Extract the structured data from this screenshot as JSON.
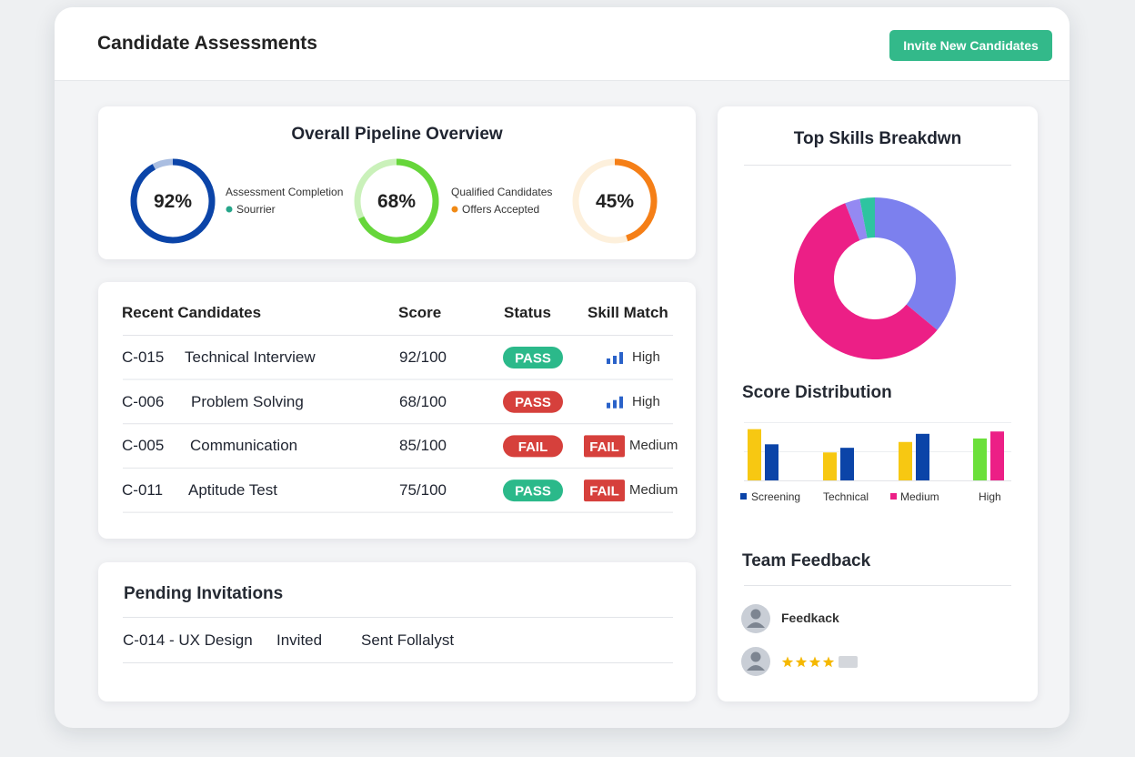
{
  "header": {
    "title": "Candidate Assessments",
    "button": "Invite New Candidates"
  },
  "pipeline": {
    "title": "Overall Pipeline Overview",
    "rings": [
      {
        "value": 92,
        "label": "92%",
        "color": "#0b44a8",
        "track": "#0b44a8"
      },
      {
        "value": 68,
        "label": "68%",
        "color": "#66d63a",
        "track": "#66d63a"
      },
      {
        "value": 45,
        "label": "45%",
        "color": "#f57f17",
        "track": "#f9d49c"
      }
    ],
    "legend": [
      {
        "title": "Assessment Completion",
        "item": "Sourrier",
        "color": "#26a68a"
      },
      {
        "title": "Qualified Candidates",
        "item": "Offers Accepted",
        "color": "#f08a16"
      }
    ]
  },
  "candidates": {
    "headers": [
      "Recent Candidates",
      "Score",
      "Status",
      "Skill Match"
    ],
    "rows": [
      {
        "id": "C-015",
        "name": "Technical Interview",
        "score": "92/100",
        "status": "PASS",
        "status_color": "#2bb98a",
        "level": "High"
      },
      {
        "id": "C-006",
        "name": "Problem Solving",
        "score": "68/100",
        "status": "PASS",
        "status_color": "#d6403c",
        "level": "High"
      },
      {
        "id": "C-005",
        "name": "Communication",
        "score": "85/100",
        "status": "FAIL",
        "status_color": "#d6403c",
        "skill_badge": "FAIL",
        "level": "Medium"
      },
      {
        "id": "C-011",
        "name": "Aptitude Test",
        "score": "75/100",
        "status": "PASS",
        "status_color": "#2bb98a",
        "skill_badge": "FAIL",
        "level": "Medium"
      }
    ]
  },
  "pending": {
    "title": "Pending Invitations",
    "row": [
      "C-014 - UX Design",
      "Invited",
      "Sent Follalyst"
    ]
  },
  "skills": {
    "title": "Top Skills Breakdwn",
    "type": "donut",
    "values": [
      36,
      58,
      3,
      3
    ],
    "colors": [
      "#7c80ee",
      "#ec1f86",
      "#9489f2",
      "#2ec4a0"
    ]
  },
  "distribution": {
    "title": "Score Distribution",
    "type": "bar",
    "ylim": [
      0,
      100
    ],
    "labels": [
      "Screening",
      "Technical",
      "Medium",
      "High"
    ],
    "groups": [
      {
        "values": [
          88,
          62
        ],
        "colors": [
          "#f7c812",
          "#0b44a8"
        ]
      },
      {
        "values": [
          48,
          56
        ],
        "colors": [
          "#f7c812",
          "#0b44a8"
        ]
      },
      {
        "values": [
          66,
          80
        ],
        "colors": [
          "#f7c812",
          "#0b44a8"
        ]
      },
      {
        "values": [
          72,
          84
        ],
        "colors": [
          "#6be03a",
          "#ec1f86"
        ]
      }
    ]
  },
  "feedback": {
    "title": "Team Feedback",
    "name": "Feedkack",
    "rating": 4
  }
}
